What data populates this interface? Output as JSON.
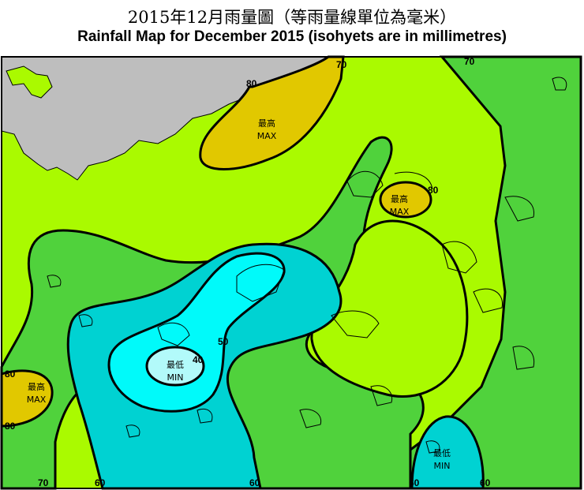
{
  "title_zh": "2015年12月雨量圖（等雨量線單位為毫米）",
  "title_en": "Rainfall Map for December 2015 (isohyets are in millimetres)",
  "colors": {
    "zone_below_40": "#b2fafa",
    "zone_40_50": "#00fafa",
    "zone_50_60": "#00d2d2",
    "zone_60_70": "#50d23c",
    "zone_70_80": "#aafa00",
    "zone_above_80": "#e1c800",
    "land_outside": "#bebebe",
    "isohyet": "#000000",
    "coastline": "#000000"
  },
  "isohyet_labels": {
    "top_80": "80",
    "top_70": "70",
    "right_70": "70",
    "east_80": "80",
    "west_80_upper": "80",
    "west_80_lower": "80",
    "center_50": "50",
    "center_40": "40",
    "bottom_70": "70",
    "bottom_60_a": "60",
    "bottom_60_b": "60",
    "bottom_60_c": "60",
    "bottom_60_d": "60"
  },
  "markers": {
    "max_north": {
      "zh": "最高",
      "en": "MAX"
    },
    "max_east": {
      "zh": "最高",
      "en": "MAX"
    },
    "max_west": {
      "zh": "最高",
      "en": "MAX"
    },
    "min_center": {
      "zh": "最低",
      "en": "MIN"
    },
    "min_south": {
      "zh": "最低",
      "en": "MIN"
    }
  }
}
